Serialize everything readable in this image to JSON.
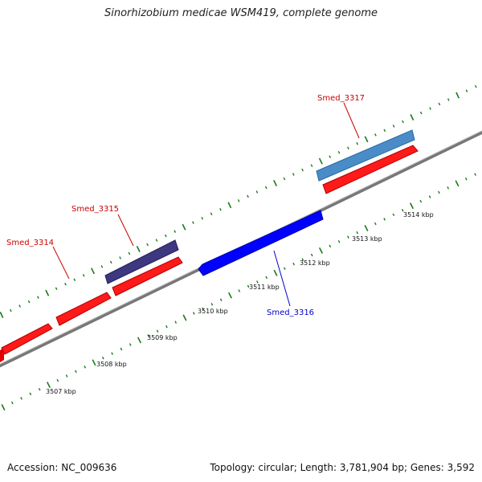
{
  "title": "Sinorhizobium medicae WSM419, complete genome",
  "footer": {
    "accession": "Accession: NC_009636",
    "topology": "Topology: circular; Length: 3,781,904 bp; Genes: 3,592"
  },
  "scale_labels": [
    "3507 kbp",
    "3508 kbp",
    "3509 kbp",
    "3510 kbp",
    "3511 kbp",
    "3512 kbp",
    "3513 kbp",
    "3514 kbp"
  ],
  "genes": [
    {
      "name": "Smed_3314",
      "color": "#cc0000"
    },
    {
      "name": "Smed_3315",
      "color": "#cc0000"
    },
    {
      "name": "Smed_3316",
      "color": "#0000cc"
    },
    {
      "name": "Smed_3317",
      "color": "#cc0000"
    }
  ],
  "colors": {
    "cds": "#ff0000",
    "gene_forward_3315": "#3d3880",
    "gene_forward_3317": "#4a8cc8",
    "gene_reverse_3316": "#0000ff",
    "backbone": "#888888",
    "tick": "#1a7a1a"
  }
}
